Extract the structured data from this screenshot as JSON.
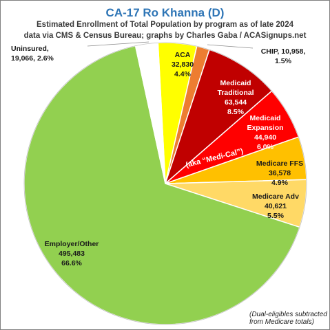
{
  "chart_data": {
    "type": "pie",
    "title": "CA-17 Ro Khanna (D)",
    "subtitle_lines": [
      "Estimated Enrollment of Total Population by program as of late 2024",
      "data via CMS & Census Bureau; graphs by Charles Gaba / ACASignups.net"
    ],
    "slices": [
      {
        "name": "ACA",
        "value": 32830,
        "value_label": "32,830",
        "percent": "4.4%",
        "color": "#ffff00"
      },
      {
        "name": "CHIP",
        "value": 10958,
        "value_label": "10,958",
        "percent": "1.5%",
        "color": "#ed7d31"
      },
      {
        "name": "Medicaid Traditional",
        "value": 63544,
        "value_label": "63,544",
        "percent": "8.5%",
        "color": "#c00000"
      },
      {
        "name": "Medicaid Expansion",
        "value": 44940,
        "value_label": "44,940",
        "percent": "6.0%",
        "color": "#ff0000"
      },
      {
        "name": "Medicare FFS",
        "value": 36578,
        "value_label": "36,578",
        "percent": "4.9%",
        "color": "#ffc000"
      },
      {
        "name": "Medicare Adv",
        "value": 40621,
        "value_label": "40,621",
        "percent": "5.5%",
        "color": "#ffd966"
      },
      {
        "name": "Employer/Other",
        "value": 495483,
        "value_label": "495,483",
        "percent": "66.6%",
        "color": "#92d050"
      },
      {
        "name": "Uninsured",
        "value": 19066,
        "value_label": "19,066",
        "percent": "2.6%",
        "color": "#ffffff"
      }
    ],
    "labels": [
      {
        "slice": "ACA",
        "lines": [
          "ACA",
          "32,830",
          "4.4%"
        ],
        "color": "#1a1a1a"
      },
      {
        "slice": "CHIP",
        "lines": [
          "CHIP, 10,958,",
          "1.5%"
        ],
        "color": "#1a1a1a"
      },
      {
        "slice": "Medicaid Traditional",
        "lines": [
          "Medicaid",
          "Traditional",
          "63,544",
          "8.5%"
        ],
        "color": "#ffffff"
      },
      {
        "slice": "Medicaid Expansion",
        "lines": [
          "Medicaid",
          "Expansion",
          "44,940",
          "6.0%"
        ],
        "color": "#ffffff"
      },
      {
        "slice": "Medicare FFS",
        "lines": [
          "Medicare FFS",
          "36,578",
          "4.9%"
        ],
        "color": "#1a1a1a"
      },
      {
        "slice": "Medicare Adv",
        "lines": [
          "Medicare Adv",
          "40,621",
          "5.5%"
        ],
        "color": "#1a1a1a"
      },
      {
        "slice": "Employer/Other",
        "lines": [
          "Employer/Other",
          "495,483",
          "66.6%"
        ],
        "color": "#1a1a1a"
      },
      {
        "slice": "Uninsured",
        "lines": [
          "Uninsured,",
          "19,066, 2.6%"
        ],
        "color": "#1a1a1a"
      }
    ],
    "annotations": [
      {
        "text": "(aka “Medi-Cal”)",
        "color": "#ffffff"
      }
    ],
    "footnote": [
      "(Dual-eligibles subtracted",
      "from Medicare totals)"
    ],
    "border_color": "#7f7f7f",
    "title_color": "#2e75b6"
  }
}
